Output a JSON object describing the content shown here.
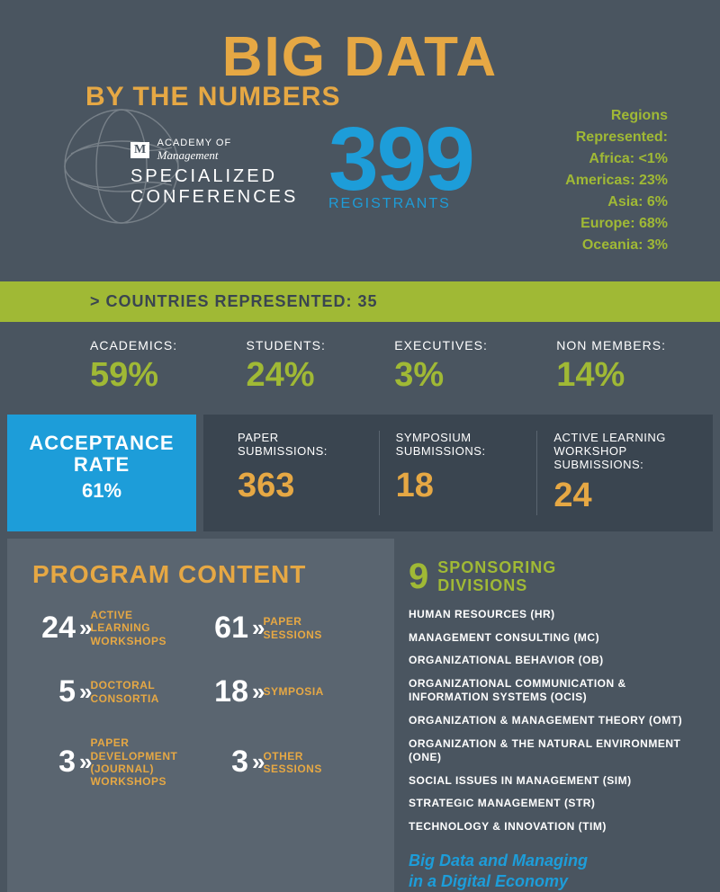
{
  "header": {
    "title": "BIG DATA",
    "subtitle": "BY THE NUMBERS"
  },
  "logo": {
    "academy_of": "ACADEMY OF",
    "management": "Management",
    "specialized": "SPECIALIZED",
    "conferences": "CONFERENCES"
  },
  "registrants": {
    "value": "399",
    "label": "REGISTRANTS"
  },
  "regions": {
    "title": "Regions",
    "represented": "Represented:",
    "items": [
      "Africa: <1%",
      "Americas: 23%",
      "Asia: 6%",
      "Europe: 68%",
      "Oceania: 3%"
    ]
  },
  "countries_bar": "> COUNTRIES REPRESENTED: 35",
  "breakdown": [
    {
      "label": "ACADEMICS:",
      "value": "59%"
    },
    {
      "label": "STUDENTS:",
      "value": "24%"
    },
    {
      "label": "EXECUTIVES:",
      "value": "3%"
    },
    {
      "label": "NON MEMBERS:",
      "value": "14%"
    }
  ],
  "acceptance": {
    "title1": "ACCEPTANCE",
    "title2": "RATE",
    "pct": "61%"
  },
  "submissions": [
    {
      "label": "PAPER SUBMISSIONS:",
      "value": "363"
    },
    {
      "label": "SYMPOSIUM SUBMISSIONS:",
      "value": "18"
    },
    {
      "label": "ACTIVE LEARNING WORKSHOP SUBMISSIONS:",
      "value": "24"
    }
  ],
  "program": {
    "title": "PROGRAM CONTENT",
    "items": [
      {
        "num": "24",
        "label": "ACTIVE\nLEARNING\nWORKSHOPS"
      },
      {
        "num": "61",
        "label": "PAPER\nSESSIONS"
      },
      {
        "num": "5",
        "label": "DOCTORAL\nCONSORTIA"
      },
      {
        "num": "18",
        "label": "SYMPOSIA"
      },
      {
        "num": "3",
        "label": "PAPER\nDEVELOPMENT\n(JOURNAL)\nWORKSHOPS"
      },
      {
        "num": "3",
        "label": "OTHER\nSESSIONS"
      }
    ]
  },
  "sponsors": {
    "num": "9",
    "title": "SPONSORING\nDIVISIONS",
    "list": [
      "HUMAN RESOURCES (HR)",
      "MANAGEMENT CONSULTING (MC)",
      "ORGANIZATIONAL BEHAVIOR (OB)",
      "ORGANIZATIONAL COMMUNICATION & INFORMATION SYSTEMS (OCIS)",
      "ORGANIZATION & MANAGEMENT THEORY (OMT)",
      "ORGANIZATION & THE NATURAL ENVIRONMENT (ONE)",
      "SOCIAL ISSUES IN MANAGEMENT (SIM)",
      "STRATEGIC MANAGEMENT (STR)",
      "TECHNOLOGY & INNOVATION (TIM)"
    ]
  },
  "tagline": {
    "line1": "Big Data and Managing",
    "line2": "in a Digital Economy"
  },
  "colors": {
    "bg": "#4a5560",
    "olive": "#a0b935",
    "orange": "#e6a844",
    "blue": "#1d9dd9",
    "dark_panel": "#3a4550",
    "light_panel": "#5a6570"
  }
}
